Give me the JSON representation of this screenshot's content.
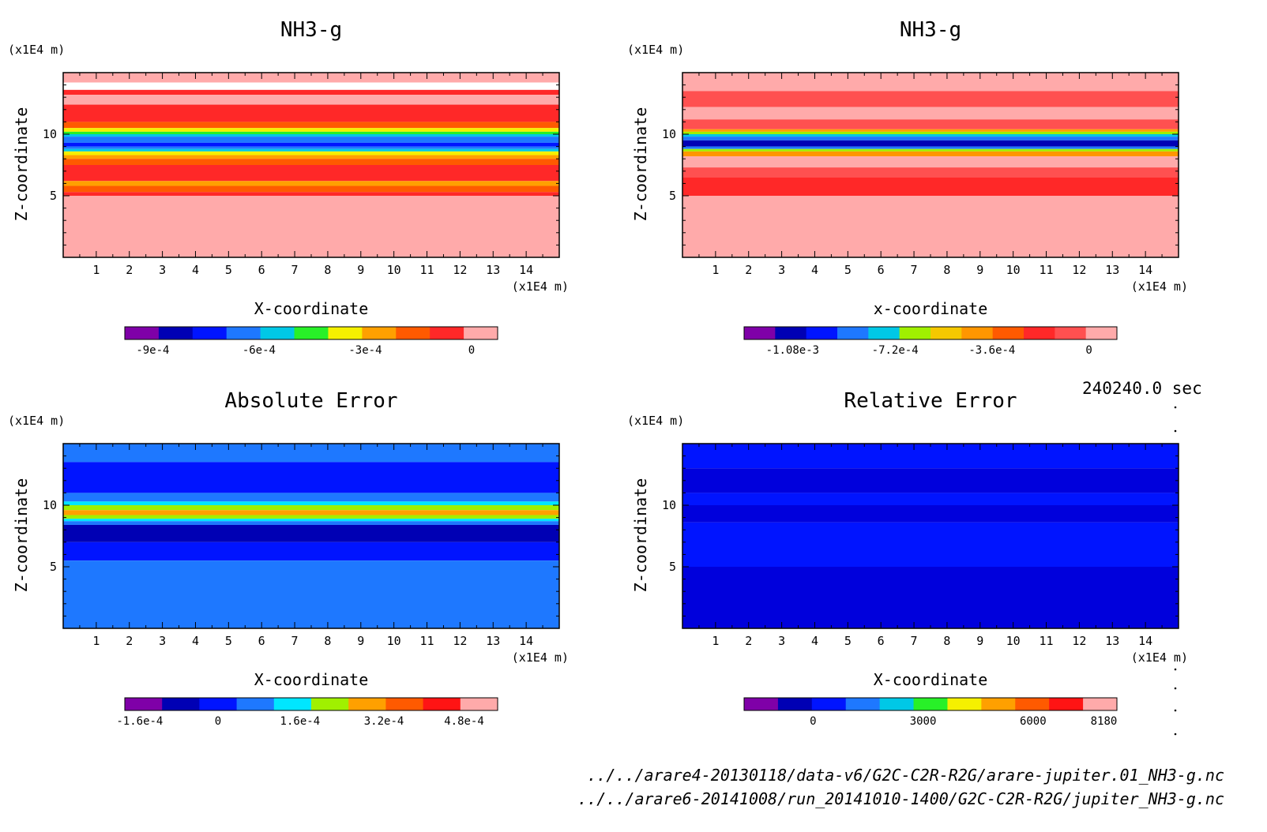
{
  "chart_data": [
    {
      "type": "heatmap",
      "title": "NH3-g",
      "xlabel": "X-coordinate",
      "ylabel": "Z-coordinate",
      "x_unit": "(x1E4 m)",
      "y_unit": "(x1E4 m)",
      "xlim": [
        0,
        15
      ],
      "ylim": [
        0,
        15
      ],
      "x_ticks": [
        "1",
        "2",
        "3",
        "4",
        "5",
        "6",
        "7",
        "8",
        "9",
        "10",
        "11",
        "12",
        "13",
        "14"
      ],
      "y_ticks": [
        "5",
        "10"
      ],
      "colorbar_labels": [
        "-9e-4",
        "-6e-4",
        "-3e-4",
        "0"
      ],
      "colorbar_colors": [
        "#7f00a8",
        "#0000b4",
        "#0014ff",
        "#1e78ff",
        "#00c8e6",
        "#28f028",
        "#f5f000",
        "#ffa000",
        "#ff5a00",
        "#ff2828",
        "#ffaaaa"
      ],
      "bands": [
        {
          "z0": 14.2,
          "z1": 15.0,
          "color": "#ffaaaa"
        },
        {
          "z0": 13.2,
          "z1": 13.6,
          "color": "#ff2828"
        },
        {
          "z0": 12.4,
          "z1": 13.2,
          "color": "#ffaaaa"
        },
        {
          "z0": 11.0,
          "z1": 12.4,
          "color": "#ff2828"
        },
        {
          "z0": 10.5,
          "z1": 11.0,
          "color": "#ff5a00"
        },
        {
          "z0": 10.2,
          "z1": 10.5,
          "color": "#f5f000"
        },
        {
          "z0": 10.0,
          "z1": 10.2,
          "color": "#28f028"
        },
        {
          "z0": 9.8,
          "z1": 10.0,
          "color": "#00c8e6"
        },
        {
          "z0": 9.3,
          "z1": 9.8,
          "color": "#1e78ff"
        },
        {
          "z0": 9.0,
          "z1": 9.3,
          "color": "#0014ff"
        },
        {
          "z0": 8.8,
          "z1": 9.0,
          "color": "#1e78ff"
        },
        {
          "z0": 8.6,
          "z1": 8.8,
          "color": "#00c8e6"
        },
        {
          "z0": 8.3,
          "z1": 8.6,
          "color": "#f5f000"
        },
        {
          "z0": 8.0,
          "z1": 8.3,
          "color": "#ffa000"
        },
        {
          "z0": 7.5,
          "z1": 8.0,
          "color": "#ff5a00"
        },
        {
          "z0": 6.2,
          "z1": 7.5,
          "color": "#ff2828"
        },
        {
          "z0": 5.8,
          "z1": 6.2,
          "color": "#ffa000"
        },
        {
          "z0": 5.3,
          "z1": 5.8,
          "color": "#ff5a00"
        },
        {
          "z0": 5.0,
          "z1": 5.3,
          "color": "#ff2828"
        },
        {
          "z0": 0.0,
          "z1": 5.0,
          "color": "#ffaaaa"
        }
      ]
    },
    {
      "type": "heatmap",
      "title": "NH3-g",
      "xlabel": "x-coordinate",
      "ylabel": "Z-coordinate",
      "x_unit": "(x1E4 m)",
      "y_unit": "(x1E4 m)",
      "xlim": [
        0,
        15
      ],
      "ylim": [
        0,
        15
      ],
      "x_ticks": [
        "1",
        "2",
        "3",
        "4",
        "5",
        "6",
        "7",
        "8",
        "9",
        "10",
        "11",
        "12",
        "13",
        "14"
      ],
      "y_ticks": [
        "5",
        "10"
      ],
      "colorbar_labels": [
        "-1.08e-3",
        "-7.2e-4",
        "-3.6e-4",
        "0"
      ],
      "colorbar_colors": [
        "#7f00a8",
        "#0000b4",
        "#0014ff",
        "#1e78ff",
        "#00c8e6",
        "#a0f000",
        "#f5c800",
        "#ff9600",
        "#ff5a00",
        "#ff2828",
        "#ff5050",
        "#ffaaaa"
      ],
      "bands": [
        {
          "z0": 13.5,
          "z1": 15.0,
          "color": "#ffaaaa"
        },
        {
          "z0": 12.2,
          "z1": 13.5,
          "color": "#ff5050"
        },
        {
          "z0": 11.2,
          "z1": 12.2,
          "color": "#ffaaaa"
        },
        {
          "z0": 10.4,
          "z1": 11.2,
          "color": "#ff5050"
        },
        {
          "z0": 10.2,
          "z1": 10.4,
          "color": "#ffa000"
        },
        {
          "z0": 10.0,
          "z1": 10.2,
          "color": "#a0f000"
        },
        {
          "z0": 9.8,
          "z1": 10.0,
          "color": "#00c8e6"
        },
        {
          "z0": 9.5,
          "z1": 9.8,
          "color": "#1e78ff"
        },
        {
          "z0": 9.0,
          "z1": 9.5,
          "color": "#0000b4"
        },
        {
          "z0": 8.8,
          "z1": 9.0,
          "color": "#1e78ff"
        },
        {
          "z0": 8.6,
          "z1": 8.8,
          "color": "#a0f000"
        },
        {
          "z0": 8.2,
          "z1": 8.6,
          "color": "#ff9600"
        },
        {
          "z0": 7.3,
          "z1": 8.2,
          "color": "#ffaaaa"
        },
        {
          "z0": 6.5,
          "z1": 7.3,
          "color": "#ff5050"
        },
        {
          "z0": 5.0,
          "z1": 6.5,
          "color": "#ff2828"
        },
        {
          "z0": 0.0,
          "z1": 5.0,
          "color": "#ffaaaa"
        }
      ]
    },
    {
      "type": "heatmap",
      "title": "Absolute Error",
      "xlabel": "X-coordinate",
      "ylabel": "Z-coordinate",
      "x_unit": "(x1E4 m)",
      "y_unit": "(x1E4 m)",
      "xlim": [
        0,
        15
      ],
      "ylim": [
        0,
        15
      ],
      "x_ticks": [
        "1",
        "2",
        "3",
        "4",
        "5",
        "6",
        "7",
        "8",
        "9",
        "10",
        "11",
        "12",
        "13",
        "14"
      ],
      "y_ticks": [
        "5",
        "10"
      ],
      "colorbar_labels": [
        "-1.6e-4",
        "0",
        "1.6e-4",
        "3.2e-4",
        "4.8e-4"
      ],
      "colorbar_colors": [
        "#7f00a8",
        "#0000b4",
        "#0014ff",
        "#1e78ff",
        "#00e6ff",
        "#a0f000",
        "#ffa000",
        "#ff5a00",
        "#ff1414",
        "#ffaaaa"
      ],
      "bands": [
        {
          "z0": 13.5,
          "z1": 15.0,
          "color": "#1e78ff"
        },
        {
          "z0": 11.0,
          "z1": 13.5,
          "color": "#0014ff"
        },
        {
          "z0": 10.3,
          "z1": 11.0,
          "color": "#1e78ff"
        },
        {
          "z0": 10.0,
          "z1": 10.3,
          "color": "#00e6ff"
        },
        {
          "z0": 9.6,
          "z1": 10.0,
          "color": "#a0f000"
        },
        {
          "z0": 9.2,
          "z1": 9.6,
          "color": "#ffa000"
        },
        {
          "z0": 8.9,
          "z1": 9.2,
          "color": "#a0f000"
        },
        {
          "z0": 8.7,
          "z1": 8.9,
          "color": "#00e6ff"
        },
        {
          "z0": 8.4,
          "z1": 8.7,
          "color": "#1e78ff"
        },
        {
          "z0": 7.0,
          "z1": 8.4,
          "color": "#0000b4"
        },
        {
          "z0": 5.5,
          "z1": 7.0,
          "color": "#0014ff"
        },
        {
          "z0": 0.0,
          "z1": 5.5,
          "color": "#1e78ff"
        }
      ]
    },
    {
      "type": "heatmap",
      "title": "Relative Error",
      "xlabel": "X-coordinate",
      "ylabel": "Z-coordinate",
      "x_unit": "(x1E4 m)",
      "y_unit": "(x1E4 m)",
      "xlim": [
        0,
        15
      ],
      "ylim": [
        0,
        15
      ],
      "x_ticks": [
        "1",
        "2",
        "3",
        "4",
        "5",
        "6",
        "7",
        "8",
        "9",
        "10",
        "11",
        "12",
        "13",
        "14"
      ],
      "y_ticks": [
        "5",
        "10"
      ],
      "colorbar_labels": [
        "0",
        "3000",
        "6000",
        "8180"
      ],
      "colorbar_colors": [
        "#7f00a8",
        "#0000b4",
        "#0014ff",
        "#1e78ff",
        "#00c8e6",
        "#28f028",
        "#f5f000",
        "#ffa000",
        "#ff5a00",
        "#ff1414",
        "#ffaaaa"
      ],
      "bands": [
        {
          "z0": 13.0,
          "z1": 15.0,
          "color": "#0014ff"
        },
        {
          "z0": 11.0,
          "z1": 13.0,
          "color": "#0000dc"
        },
        {
          "z0": 10.0,
          "z1": 11.0,
          "color": "#0014ff"
        },
        {
          "z0": 8.6,
          "z1": 10.0,
          "color": "#0000dc"
        },
        {
          "z0": 5.0,
          "z1": 8.6,
          "color": "#0014ff"
        },
        {
          "z0": 0.0,
          "z1": 5.0,
          "color": "#0000dc"
        }
      ]
    }
  ],
  "time_label": "240240.0 sec",
  "file_paths": [
    "../../arare4-20130118/data-v6/G2C-C2R-R2G/arare-jupiter.01_NH3-g.nc",
    "../../arare6-20141008/run_20141010-1400/G2C-C2R-R2G/jupiter_NH3-g.nc"
  ]
}
